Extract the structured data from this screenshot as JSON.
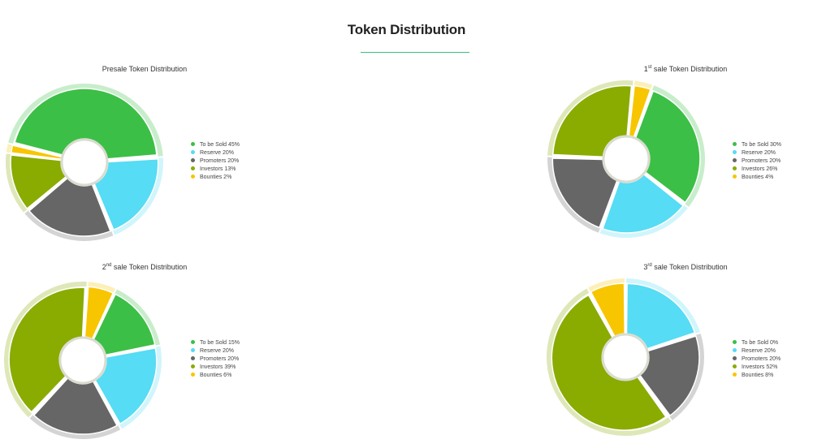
{
  "page": {
    "title": "Token Distribution"
  },
  "colors": {
    "to_be_sold": "#3cbf46",
    "reserve": "#56dcf4",
    "promoters": "#666666",
    "investors": "#8aab00",
    "bounties": "#f7c600"
  },
  "chart_data": [
    {
      "type": "pie",
      "title_prefix": "",
      "title_sup": "",
      "title_rest": "Presale Token Distribution",
      "categories": [
        "To be Sold",
        "Reserve",
        "Promoters",
        "Investors",
        "Bounties"
      ],
      "values": [
        45,
        20,
        20,
        13,
        2
      ],
      "legend_labels": [
        "To be Sold 45%",
        "Reserve 20%",
        "Promoters 20%",
        "Investors 13%",
        "Bounties 2%"
      ],
      "legend": "right"
    },
    {
      "type": "pie",
      "title_prefix": "1",
      "title_sup": "st",
      "title_rest": "sale Token Distribution",
      "categories": [
        "To be Sold",
        "Reserve",
        "Promoters",
        "Investors",
        "Bounties"
      ],
      "values": [
        30,
        20,
        20,
        26,
        4
      ],
      "legend_labels": [
        "To be Sold 30%",
        "Reserve 20%",
        "Promoters 20%",
        "Investors 26%",
        "Bounties 4%"
      ],
      "legend": "right"
    },
    {
      "type": "pie",
      "title_prefix": "2",
      "title_sup": "nd",
      "title_rest": "sale Token Distribution",
      "categories": [
        "To be Sold",
        "Reserve",
        "Promoters",
        "Investors",
        "Bounties"
      ],
      "values": [
        15,
        20,
        20,
        39,
        6
      ],
      "legend_labels": [
        "To be Sold 15%",
        "Reserve 20%",
        "Promoters 20%",
        "Investors 39%",
        "Bounties 6%"
      ],
      "legend": "right"
    },
    {
      "type": "pie",
      "title_prefix": "3",
      "title_sup": "rd",
      "title_rest": "sale Token Distribution",
      "categories": [
        "To be Sold",
        "Reserve",
        "Promoters",
        "Investors",
        "Bounties"
      ],
      "values": [
        0,
        20,
        20,
        52,
        8
      ],
      "legend_labels": [
        "To be Sold 0%",
        "Reserve 20%",
        "Promoters 20%",
        "Investors 52%",
        "Bounties 8%"
      ],
      "legend": "right"
    }
  ]
}
